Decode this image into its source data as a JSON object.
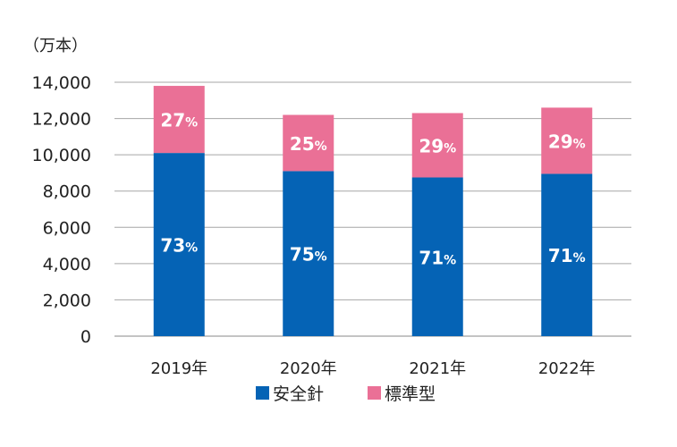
{
  "chart_data": {
    "type": "bar",
    "stacked": true,
    "unit_label": "（万本）",
    "categories": [
      "2019年",
      "2020年",
      "2021年",
      "2022年"
    ],
    "yticks": [
      "0",
      "2,000",
      "4,000",
      "6,000",
      "8,000",
      "10,000",
      "12,000",
      "14,000"
    ],
    "ylim": [
      0,
      14000
    ],
    "grid": true,
    "legend_position": "bottom",
    "series": [
      {
        "name": "安全針",
        "color": "#0563b5",
        "values": [
          10100,
          9100,
          8750,
          8950
        ],
        "pct_labels": [
          "73",
          "75",
          "71",
          "71"
        ]
      },
      {
        "name": "標準型",
        "color": "#ea7096",
        "values": [
          3700,
          3100,
          3550,
          3650
        ],
        "pct_labels": [
          "27",
          "25",
          "29",
          "29"
        ]
      }
    ],
    "pct_suffix": "%"
  }
}
